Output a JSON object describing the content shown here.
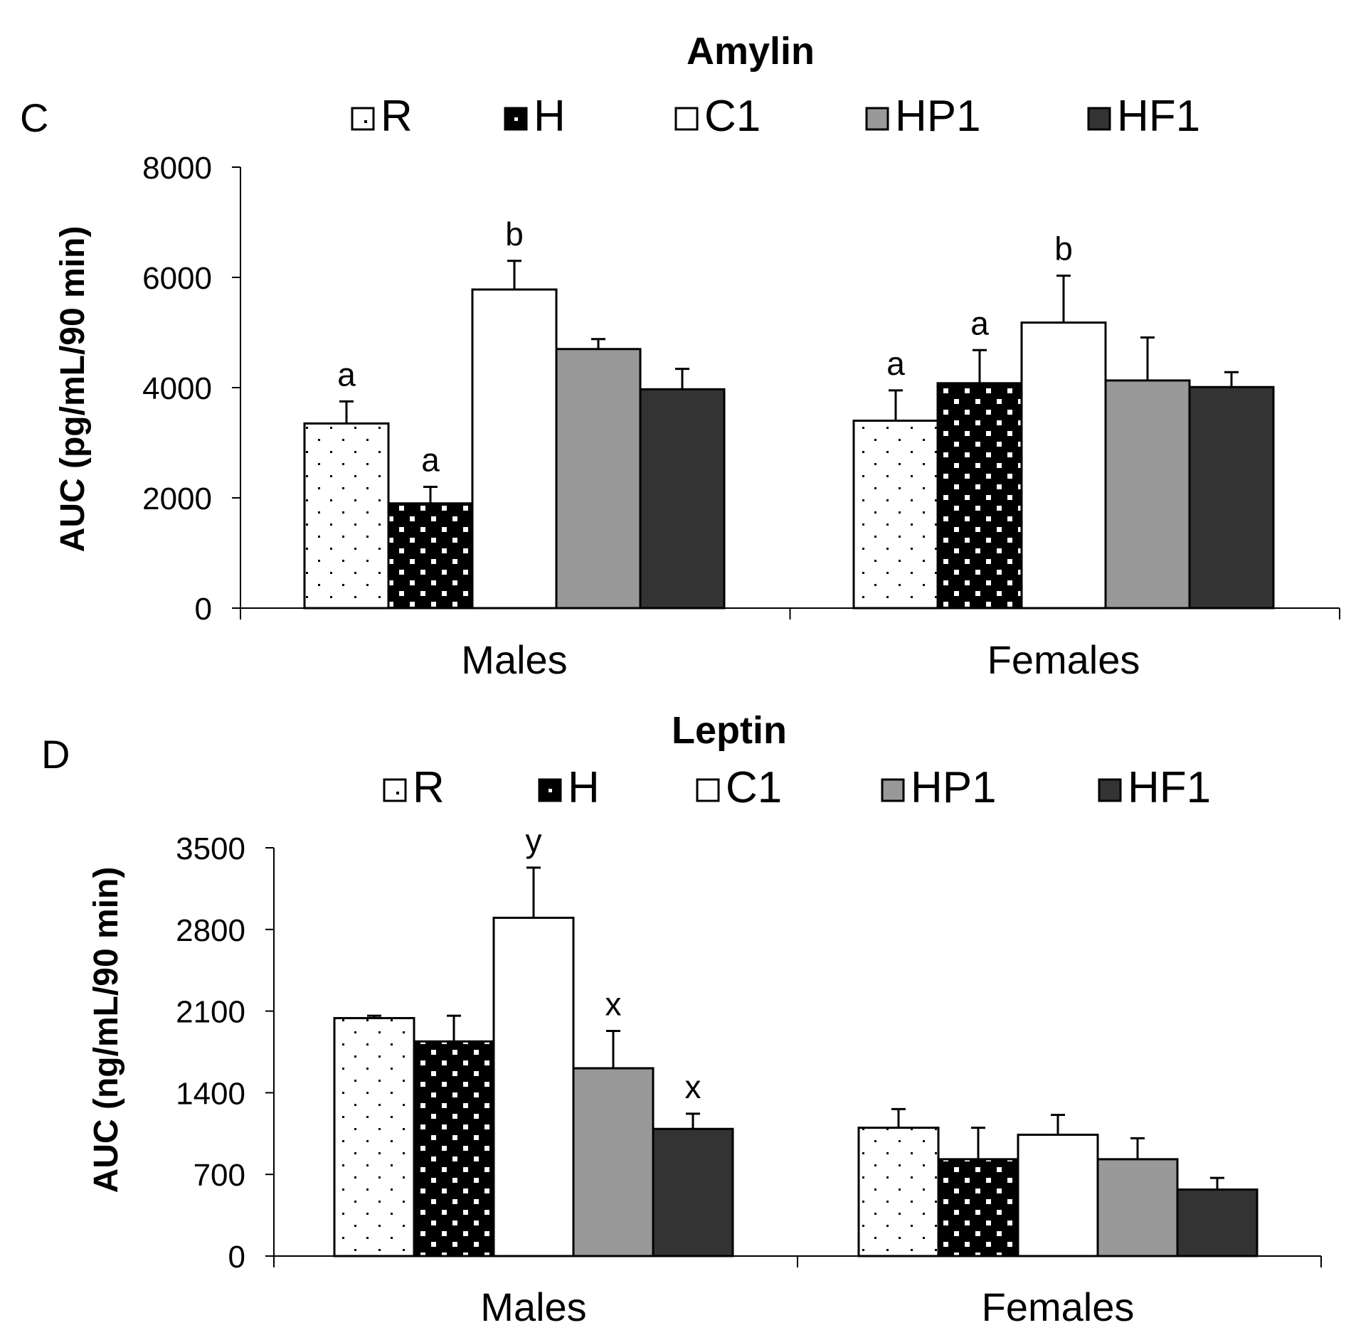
{
  "legend_labels": [
    "R",
    "H",
    "C1",
    "HP1",
    "HF1"
  ],
  "series_colors": {
    "R": "#ffffff",
    "H": "#000000",
    "C1": "#ffffff",
    "HP1": "#999999",
    "HF1": "#333333"
  },
  "chart_data": [
    {
      "type": "bar",
      "panel_label": "C",
      "title": "Amylin",
      "xlabel": "",
      "ylabel": "AUC (pg/mL/90 min)",
      "categories": [
        "Males",
        "Females"
      ],
      "ylim": [
        0,
        8000
      ],
      "yticks": [
        "0",
        "2000",
        "4000",
        "6000",
        "8000"
      ],
      "grid": false,
      "legend": "top",
      "series": [
        {
          "name": "R",
          "values": [
            3350,
            3400
          ],
          "errors": [
            400,
            550
          ],
          "letters": [
            "a",
            "a"
          ]
        },
        {
          "name": "H",
          "values": [
            1900,
            4080
          ],
          "errors": [
            300,
            600
          ],
          "letters": [
            "a",
            "a"
          ]
        },
        {
          "name": "C1",
          "values": [
            5780,
            5180
          ],
          "errors": [
            520,
            850
          ],
          "letters": [
            "b",
            "b"
          ]
        },
        {
          "name": "HP1",
          "values": [
            4700,
            4130
          ],
          "errors": [
            180,
            780
          ],
          "letters": [
            "",
            ""
          ]
        },
        {
          "name": "HF1",
          "values": [
            3970,
            4010
          ],
          "errors": [
            370,
            270
          ],
          "letters": [
            "",
            ""
          ]
        }
      ]
    },
    {
      "type": "bar",
      "panel_label": "D",
      "title": "Leptin",
      "xlabel": "",
      "ylabel": "AUC (ng/mL/90 min)",
      "categories": [
        "Males",
        "Females"
      ],
      "ylim": [
        0,
        3500
      ],
      "yticks": [
        "0",
        "700",
        "1400",
        "2100",
        "2800",
        "3500"
      ],
      "grid": false,
      "legend": "top",
      "series": [
        {
          "name": "R",
          "values": [
            2040,
            1100
          ],
          "errors": [
            20,
            160
          ],
          "letters": [
            "",
            ""
          ]
        },
        {
          "name": "H",
          "values": [
            1840,
            830
          ],
          "errors": [
            220,
            270
          ],
          "letters": [
            "",
            ""
          ]
        },
        {
          "name": "C1",
          "values": [
            2900,
            1040
          ],
          "errors": [
            430,
            170
          ],
          "letters": [
            "y",
            ""
          ]
        },
        {
          "name": "HP1",
          "values": [
            1610,
            830
          ],
          "errors": [
            320,
            180
          ],
          "letters": [
            "x",
            ""
          ]
        },
        {
          "name": "HF1",
          "values": [
            1090,
            570
          ],
          "errors": [
            130,
            100
          ],
          "letters": [
            "x",
            ""
          ]
        }
      ]
    }
  ]
}
